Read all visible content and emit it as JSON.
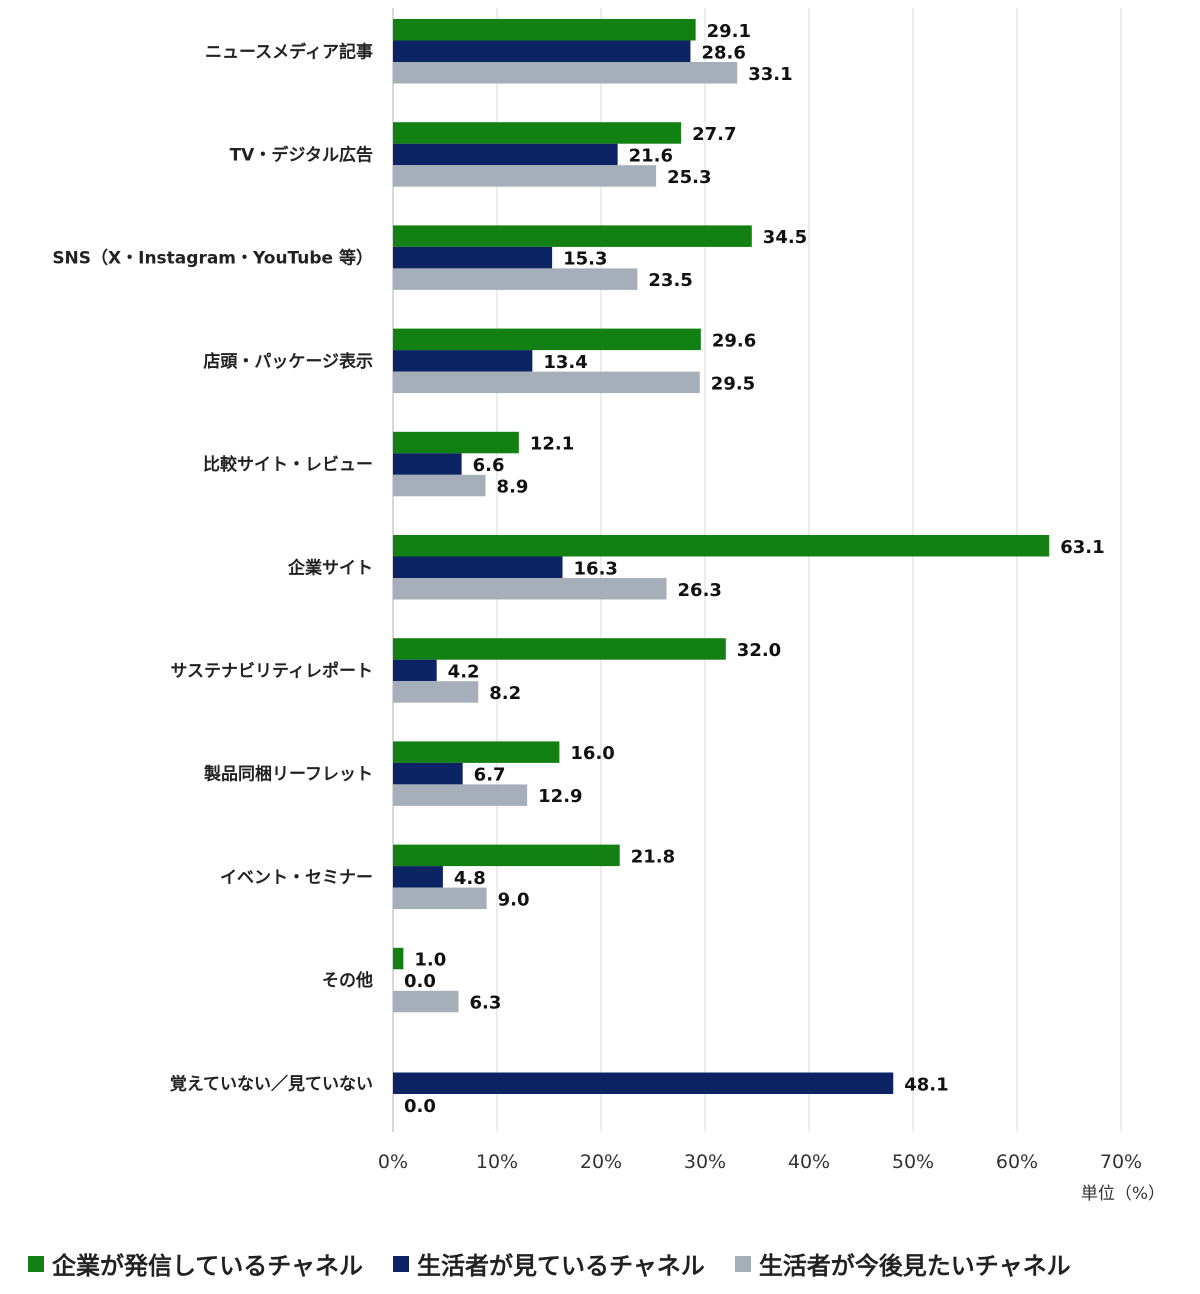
{
  "chart_data": {
    "type": "bar",
    "orientation": "horizontal",
    "categories": [
      "ニュースメディア記事",
      "TV・デジタル広告",
      "SNS（X・Instagram・YouTube 等）",
      "店頭・パッケージ表示",
      "比較サイト・レビュー",
      "企業サイト",
      "サステナビリティレポート",
      "製品同梱リーフレット",
      "イベント・セミナー",
      "その他",
      "覚えていない／見ていない"
    ],
    "series": [
      {
        "name": "企業が発信しているチャネル",
        "color": "#128012",
        "values": [
          29.1,
          27.7,
          34.5,
          29.6,
          12.1,
          63.1,
          32.0,
          16.0,
          21.8,
          1.0,
          null
        ]
      },
      {
        "name": "生活者が見ているチャネル",
        "color": "#0c2464",
        "values": [
          28.6,
          21.6,
          15.3,
          13.4,
          6.6,
          16.3,
          4.2,
          6.7,
          4.8,
          0.0,
          48.1
        ]
      },
      {
        "name": "生活者が今後見たいチャネル",
        "color": "#a6afb9",
        "values": [
          33.1,
          25.3,
          23.5,
          29.5,
          8.9,
          26.3,
          8.2,
          12.9,
          9.0,
          6.3,
          0.0
        ]
      }
    ],
    "xlim": [
      0,
      70
    ],
    "xticks": [
      "0%",
      "10%",
      "20%",
      "30%",
      "40%",
      "50%",
      "60%",
      "70%"
    ],
    "unit_label": "単位（%）",
    "grid": true,
    "legend_position": "bottom"
  }
}
